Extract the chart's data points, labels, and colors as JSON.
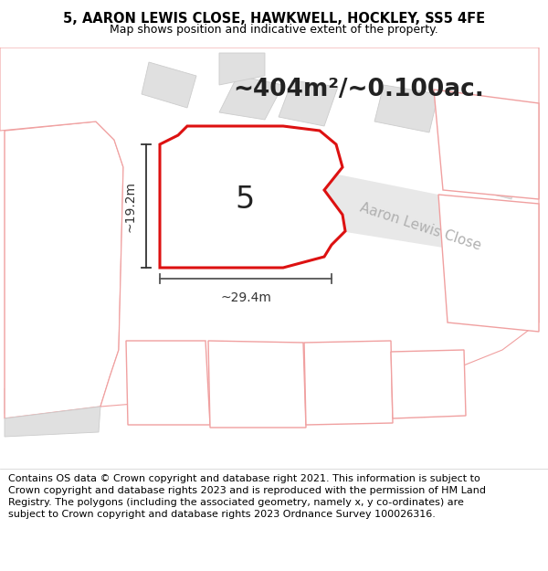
{
  "title": "5, AARON LEWIS CLOSE, HAWKWELL, HOCKLEY, SS5 4FE",
  "subtitle": "Map shows position and indicative extent of the property.",
  "area_text": "~404m²/~0.100ac.",
  "dim_width": "~29.4m",
  "dim_height": "~19.2m",
  "plot_label": "5",
  "street_label": "Aaron Lewis Close",
  "copyright_text": "Contains OS data © Crown copyright and database right 2021. This information is subject to Crown copyright and database rights 2023 and is reproduced with the permission of HM Land Registry. The polygons (including the associated geometry, namely x, y co-ordinates) are subject to Crown copyright and database rights 2023 Ordnance Survey 100026316.",
  "map_bg": "#ffffff",
  "header_bg": "#ffffff",
  "footer_bg": "#ffffff",
  "building_fill": "#e0e0e0",
  "building_edge": "#cccccc",
  "plot_fill": "#ffffff",
  "plot_edge": "#dd1111",
  "neighbor_fill": "#ffffff",
  "neighbor_edge": "#f0a0a0",
  "title_fontsize": 10.5,
  "subtitle_fontsize": 9,
  "area_fontsize": 19,
  "footer_fontsize": 8,
  "street_label_color": "#b0b0b0",
  "street_label_size": 11,
  "dim_color": "#333333",
  "label_color": "#222222"
}
